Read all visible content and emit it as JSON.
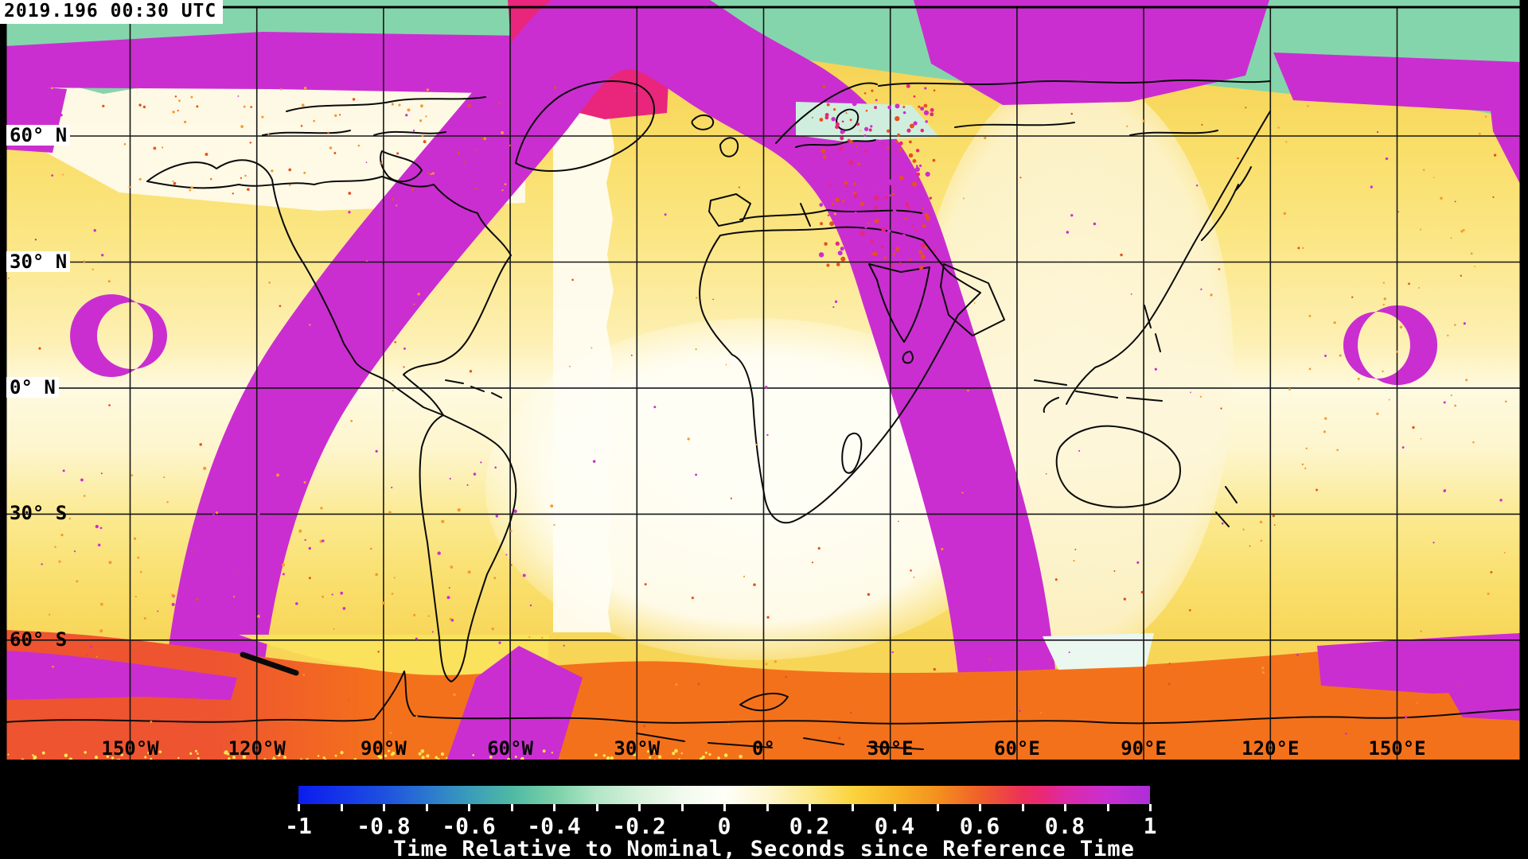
{
  "title": {
    "timestamp": "2019.196 00:30 UTC"
  },
  "map": {
    "lat_labels": [
      "60° N",
      "30° N",
      "0° N",
      "30° S",
      "60° S"
    ],
    "lon_labels": [
      "150°W",
      "120°W",
      "90°W",
      "60°W",
      "30°W",
      "0°",
      "30°E",
      "60°E",
      "90°E",
      "120°E",
      "150°E"
    ]
  },
  "palette": {
    "teal": "#85d5ac",
    "mint": "#cfeedd",
    "pale_mint": "#eaf8f0",
    "magenta": "#ca2ed0",
    "crimson": "#e9267b",
    "orange": "#f4711b",
    "orange_red": "#ee5430",
    "yellow": "#fae25c",
    "gold": "#f6cf4d",
    "cream": "#fdf3cd",
    "white_field": "#fffdf4",
    "coast": "#0a0a0a",
    "frame": "#000000",
    "speckle_orange": "#f49b30",
    "speckle_red": "#e5521c",
    "speckle_magenta": "#cc2ed0",
    "speckle_yellow": "#fce84e"
  },
  "colorbar": {
    "min": -1,
    "max": 1,
    "tick_step_minor": 0.1,
    "tick_labels": [
      "-1",
      "-0.8",
      "-0.6",
      "-0.4",
      "-0.2",
      "0",
      "0.2",
      "0.4",
      "0.6",
      "0.8",
      "1"
    ],
    "tick_values": [
      -1,
      -0.8,
      -0.6,
      -0.4,
      -0.2,
      0,
      0.2,
      0.4,
      0.6,
      0.8,
      1
    ],
    "title": "Time Relative to Nominal, Seconds since Reference Time",
    "gradient": [
      {
        "v": -1.0,
        "color": "#0b1ced"
      },
      {
        "v": -0.9,
        "color": "#1535e8"
      },
      {
        "v": -0.8,
        "color": "#1e50df"
      },
      {
        "v": -0.7,
        "color": "#2b76cf"
      },
      {
        "v": -0.6,
        "color": "#3a9cba"
      },
      {
        "v": -0.5,
        "color": "#4fb9a4"
      },
      {
        "v": -0.4,
        "color": "#79d0a8"
      },
      {
        "v": -0.3,
        "color": "#b2e6c6"
      },
      {
        "v": -0.2,
        "color": "#d7f1da"
      },
      {
        "v": -0.1,
        "color": "#f2faee"
      },
      {
        "v": 0.0,
        "color": "#fffff8"
      },
      {
        "v": 0.1,
        "color": "#fdf6d0"
      },
      {
        "v": 0.2,
        "color": "#fce98c"
      },
      {
        "v": 0.3,
        "color": "#fbd43e"
      },
      {
        "v": 0.4,
        "color": "#f8b527"
      },
      {
        "v": 0.5,
        "color": "#f4911d"
      },
      {
        "v": 0.6,
        "color": "#f0602a"
      },
      {
        "v": 0.7,
        "color": "#ec3158"
      },
      {
        "v": 0.75,
        "color": "#e92878"
      },
      {
        "v": 0.8,
        "color": "#dd2aa5"
      },
      {
        "v": 0.9,
        "color": "#c92fd1"
      },
      {
        "v": 1.0,
        "color": "#ae2ed8"
      }
    ]
  }
}
